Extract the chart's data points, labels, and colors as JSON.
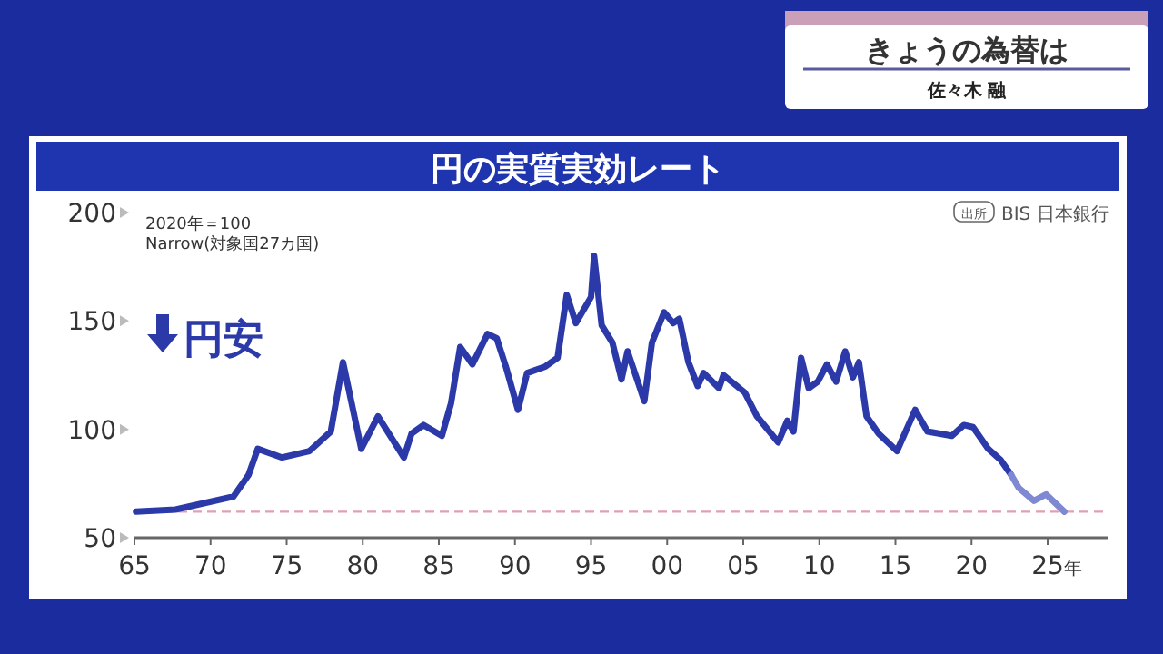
{
  "chart_data": {
    "type": "line",
    "title": "円の実質実効レート",
    "annotations": [
      "2020年＝100",
      "Narrow(対象国27カ国)",
      "円安",
      "出所",
      "BIS 日本銀行",
      "きょうの為替は",
      "佐々木 融",
      "年"
    ],
    "xlim": [
      1965,
      2029
    ],
    "xticks": [
      {
        "value": 1965,
        "label": "65"
      },
      {
        "value": 1970,
        "label": "70"
      },
      {
        "value": 1975,
        "label": "75"
      },
      {
        "value": 1980,
        "label": "80"
      },
      {
        "value": 1985,
        "label": "85"
      },
      {
        "value": 1990,
        "label": "90"
      },
      {
        "value": 1995,
        "label": "95"
      },
      {
        "value": 2000,
        "label": "00"
      },
      {
        "value": 2005,
        "label": "05"
      },
      {
        "value": 2010,
        "label": "10"
      },
      {
        "value": 2015,
        "label": "15"
      },
      {
        "value": 2020,
        "label": "20"
      },
      {
        "value": 2025,
        "label": "25"
      }
    ],
    "ylim": [
      50,
      200
    ],
    "yticks": [
      50,
      100,
      150,
      200
    ],
    "ref_lines": [
      {
        "axis": "y",
        "value": 62,
        "color": "#e0a0b4",
        "line_style": "dashed"
      }
    ],
    "series": [
      {
        "color": "#2b3aa8",
        "x": [
          1965.1,
          1967.7,
          1971.5,
          1972.5,
          1973.1,
          1974.7,
          1976.5,
          1977.9,
          1978.7,
          1979.9,
          1981,
          1982.7,
          1983.2,
          1984,
          1985.2,
          1985.8,
          1986.4,
          1987.2,
          1988.2,
          1988.8,
          1989.4,
          1990.2,
          1990.8,
          1992,
          1992.8,
          1993.4,
          1994,
          1995,
          1995.2,
          1995.7,
          1996.4,
          1997,
          1997.4,
          1998.5,
          1999,
          1999.8,
          2000.4,
          2000.8,
          2001.4,
          2002,
          2002.4,
          2003.4,
          2003.7,
          2005.1,
          2005.9,
          2007.3,
          2007.9,
          2008.3,
          2008.8,
          2009.3,
          2009.9,
          2010.5,
          2011.1,
          2011.7,
          2012.2,
          2012.6,
          2013.1,
          2013.9,
          2015.1,
          2016.3,
          2017.1,
          2018.7,
          2019.5,
          2020.1,
          2021.1,
          2021.9,
          2022.6
        ],
        "values": [
          62,
          63,
          69,
          79,
          91,
          87,
          90,
          99,
          131,
          91,
          106,
          87,
          98,
          102,
          97,
          112,
          138,
          130,
          144,
          142,
          129,
          109,
          126,
          129,
          133,
          162,
          149,
          161,
          180,
          148,
          140,
          123,
          136,
          113,
          140,
          154,
          149,
          151,
          131,
          120,
          126,
          119,
          125,
          117,
          106,
          94,
          104,
          99,
          133,
          119,
          122,
          130,
          122,
          136,
          124,
          131,
          106,
          98,
          90,
          109,
          99,
          97,
          102,
          101,
          91,
          86,
          79
        ]
      },
      {
        "color": "#7f88d2",
        "x": [
          2022.6,
          2023.1,
          2024.1,
          2024.9,
          2026.1
        ],
        "values": [
          79,
          73,
          67,
          70,
          62
        ]
      }
    ]
  }
}
